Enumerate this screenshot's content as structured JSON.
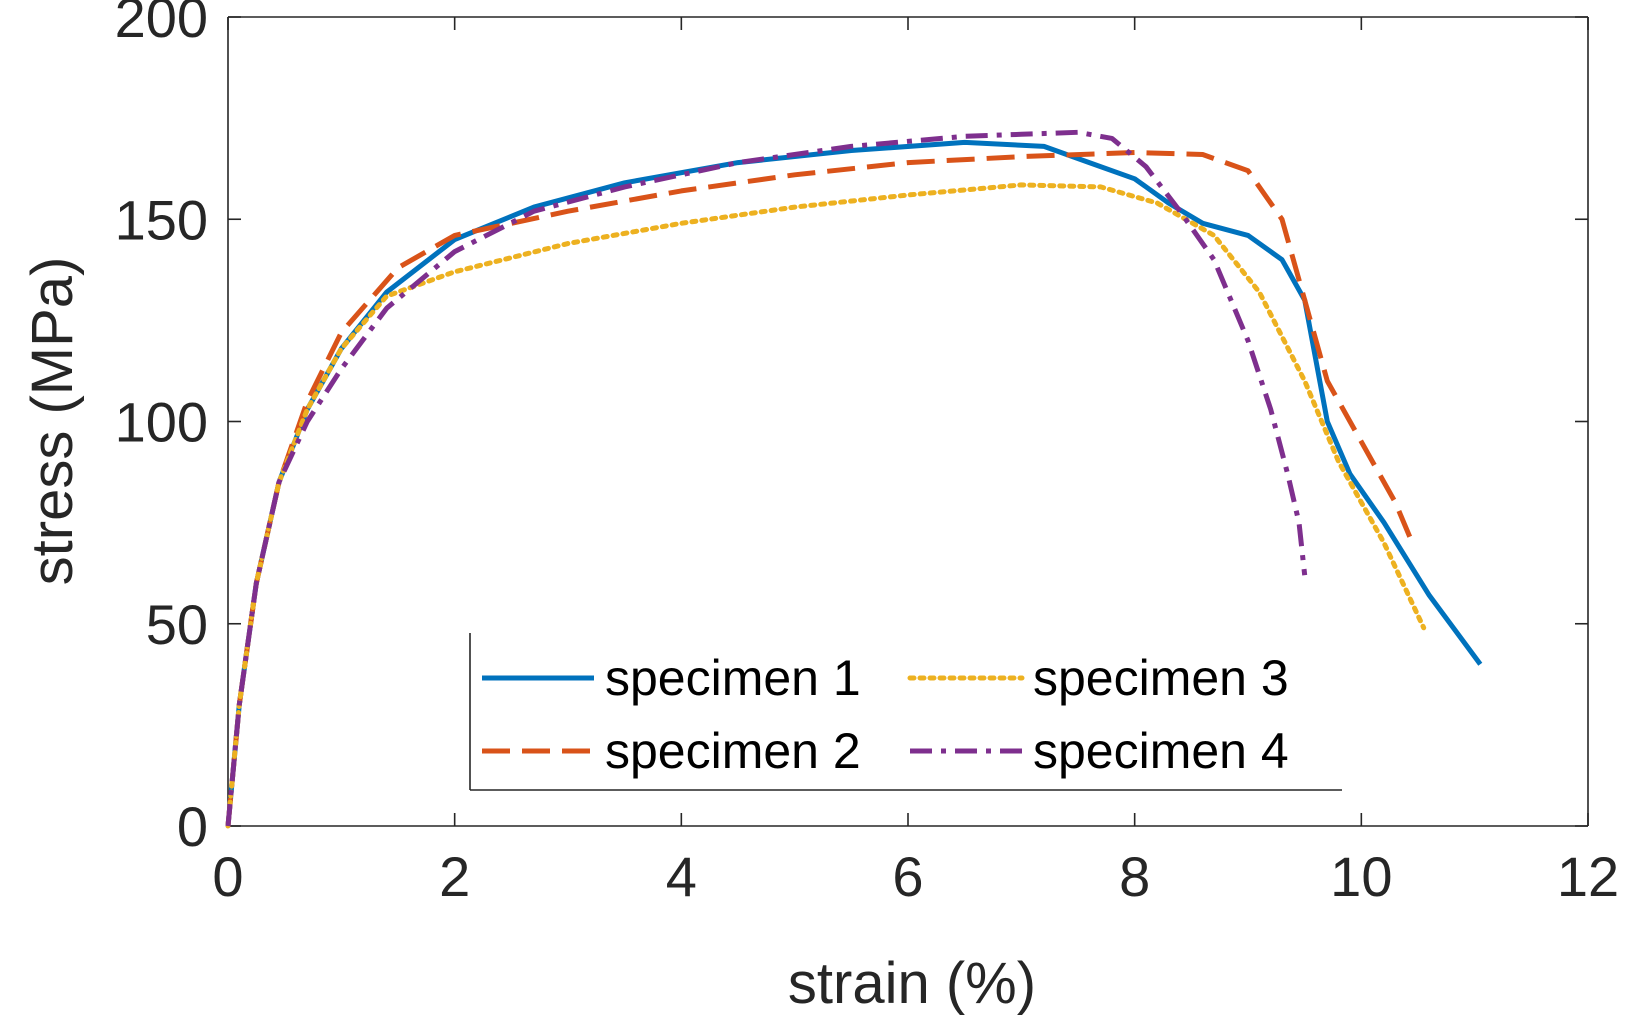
{
  "chart_data": {
    "type": "line",
    "title": "",
    "xlabel": "strain (%)",
    "ylabel": "stress (MPa)",
    "xlim": [
      0,
      12
    ],
    "ylim": [
      0,
      200
    ],
    "xticks": [
      0,
      2,
      4,
      6,
      8,
      10,
      12
    ],
    "yticks": [
      0,
      50,
      100,
      150,
      200
    ],
    "xtick_labels": [
      "0",
      "2",
      "4",
      "6",
      "8",
      "10",
      "12"
    ],
    "ytick_labels": [
      "0",
      "50",
      "100",
      "150",
      "200"
    ],
    "grid": false,
    "legend_position": "bottom-center",
    "series": [
      {
        "name": "specimen 1",
        "color": "#0072BD",
        "style": "solid",
        "x": [
          0,
          0.1,
          0.25,
          0.45,
          0.7,
          1.0,
          1.4,
          2.0,
          2.7,
          3.5,
          4.5,
          5.5,
          6.5,
          7.2,
          7.6,
          8.0,
          8.3,
          8.6,
          9.0,
          9.3,
          9.5,
          9.6,
          9.7,
          9.9,
          10.2,
          10.6,
          11.05
        ],
        "y": [
          0,
          30,
          60,
          85,
          103,
          118,
          132,
          145,
          153,
          159,
          164,
          167,
          169,
          168,
          164,
          160,
          154,
          149,
          146,
          140,
          130,
          115,
          100,
          87,
          75,
          57,
          40
        ]
      },
      {
        "name": "specimen 2",
        "color": "#D95319",
        "style": "dashed",
        "x": [
          0,
          0.1,
          0.25,
          0.45,
          0.7,
          1.0,
          1.5,
          2.0,
          3.0,
          4.0,
          5.0,
          6.0,
          7.0,
          8.0,
          8.6,
          9.0,
          9.3,
          9.5,
          9.7,
          10.0,
          10.3,
          10.45
        ],
        "y": [
          0,
          30,
          60,
          85,
          105,
          122,
          138,
          146,
          152,
          157,
          161,
          164,
          165.5,
          166.5,
          166,
          162,
          150,
          130,
          110,
          95,
          80,
          70
        ]
      },
      {
        "name": "specimen 3",
        "color": "#EDB120",
        "style": "dotted",
        "x": [
          0,
          0.1,
          0.25,
          0.45,
          0.7,
          1.0,
          1.4,
          2.0,
          3.0,
          4.0,
          5.0,
          6.0,
          7.0,
          7.7,
          8.2,
          8.7,
          9.1,
          9.5,
          9.8,
          10.2,
          10.55
        ],
        "y": [
          0,
          30,
          60,
          85,
          103,
          118,
          131,
          137,
          144,
          149,
          153,
          156,
          158.5,
          158,
          154,
          146,
          132,
          110,
          90,
          70,
          49
        ]
      },
      {
        "name": "specimen 4",
        "color": "#7E2F8E",
        "style": "dashdot",
        "x": [
          0,
          0.1,
          0.25,
          0.45,
          0.7,
          1.0,
          1.4,
          2.0,
          2.7,
          3.5,
          4.5,
          5.5,
          6.5,
          7.0,
          7.5,
          7.8,
          8.1,
          8.4,
          8.7,
          9.0,
          9.2,
          9.35,
          9.45,
          9.5
        ],
        "y": [
          0,
          30,
          60,
          85,
          100,
          113,
          128,
          142,
          152,
          158,
          164,
          168,
          170.5,
          171,
          171.5,
          170,
          163,
          152,
          140,
          120,
          103,
          87,
          75,
          62
        ]
      }
    ]
  }
}
